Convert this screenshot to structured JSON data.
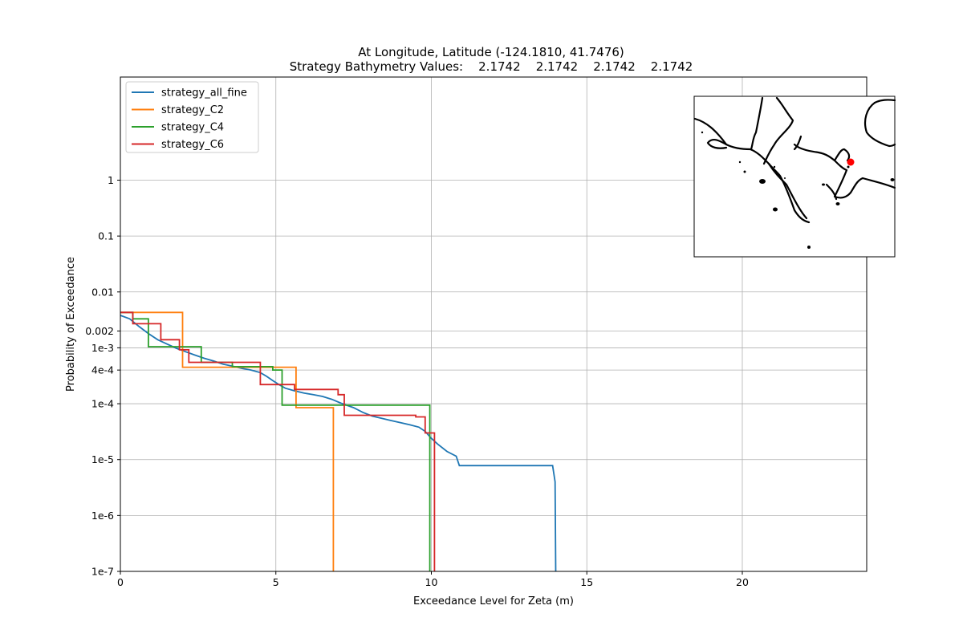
{
  "chart_data": [
    {
      "type": "line",
      "title": "At Longitude, Latitude (-124.1810,  41.7476)",
      "subtitle": "Strategy Bathymetry Values:    2.1742    2.1742    2.1742    2.1742",
      "xlabel": "Exceedance Level for Zeta (m)",
      "ylabel": "Probability of Exceedance",
      "xlim": [
        0,
        24
      ],
      "ylim": [
        1e-07,
        70
      ],
      "yscale": "log",
      "grid": true,
      "legend_position": "top-left",
      "x_ticks": [
        0,
        5,
        10,
        15,
        20
      ],
      "x_tick_labels": [
        "0",
        "5",
        "10",
        "15",
        "20"
      ],
      "y_ticks": [
        1,
        0.1,
        0.01,
        0.002,
        0.001,
        0.0004,
        0.0001,
        1e-05,
        1e-06,
        1e-07
      ],
      "y_tick_labels": [
        "1",
        "0.1",
        "0.01",
        "0.002",
        "1e-3",
        "4e-4",
        "1e-4",
        "1e-5",
        "1e-6",
        "1e-7"
      ],
      "series": [
        {
          "name": "strategy_all_fine",
          "color": "#1f77b4",
          "step": false,
          "x": [
            0,
            0.3,
            0.6,
            0.9,
            1.2,
            1.5,
            1.8,
            2.1,
            2.4,
            2.7,
            3.0,
            3.3,
            3.6,
            3.9,
            4.2,
            4.5,
            4.7,
            4.9,
            5.1,
            5.3,
            5.6,
            5.9,
            6.2,
            6.5,
            6.8,
            7.1,
            7.5,
            7.8,
            8.1,
            8.4,
            8.7,
            9.0,
            9.3,
            9.6,
            9.8,
            10.0,
            10.2,
            10.5,
            10.8,
            10.9,
            13.9,
            13.98,
            14.0
          ],
          "y": [
            0.0038,
            0.0033,
            0.0024,
            0.0018,
            0.0014,
            0.00117,
            0.00098,
            0.00085,
            0.00074,
            0.00065,
            0.00058,
            0.00051,
            0.00047,
            0.00043,
            0.0004,
            0.00036,
            0.00031,
            0.00026,
            0.00022,
            0.00019,
            0.00017,
            0.000155,
            0.000145,
            0.000135,
            0.00012,
            0.000102,
            8.5e-05,
            7e-05,
            6e-05,
            5.5e-05,
            5e-05,
            4.6e-05,
            4.2e-05,
            3.8e-05,
            3.2e-05,
            2.4e-05,
            1.9e-05,
            1.4e-05,
            1.15e-05,
            7.8e-06,
            7.8e-06,
            4e-06,
            1e-07
          ]
        },
        {
          "name": "strategy_C2",
          "color": "#ff7f0e",
          "step": true,
          "x": [
            0,
            1.9,
            2.0,
            5.65,
            5.65,
            6.85,
            6.85
          ],
          "y": [
            0.0043,
            0.0043,
            0.00045,
            0.00045,
            8.5e-05,
            8.5e-05,
            1e-07
          ]
        },
        {
          "name": "strategy_C4",
          "color": "#2ca02c",
          "step": true,
          "x": [
            0,
            0.4,
            0.9,
            2.6,
            2.6,
            3.6,
            4.9,
            5.2,
            9.6,
            9.95,
            9.95
          ],
          "y": [
            0.0043,
            0.0033,
            0.00105,
            0.00105,
            0.00055,
            0.00046,
            0.0004,
            9.4e-05,
            9.4e-05,
            6e-05,
            1e-07
          ]
        },
        {
          "name": "strategy_C6",
          "color": "#d62728",
          "step": true,
          "x": [
            0,
            0.4,
            1.3,
            1.9,
            2.2,
            4.5,
            4.5,
            5.6,
            7.0,
            7.2,
            9.5,
            9.8,
            10.1,
            10.1
          ],
          "y": [
            0.0043,
            0.0027,
            0.0014,
            0.00092,
            0.00055,
            0.00048,
            0.00022,
            0.00018,
            0.000145,
            6.2e-05,
            5.8e-05,
            3e-05,
            7.8e-06,
            1e-07
          ]
        }
      ]
    },
    {
      "type": "map",
      "marker": {
        "lon": -124.181,
        "lat": 41.7476,
        "color": "#ff0000"
      }
    }
  ]
}
